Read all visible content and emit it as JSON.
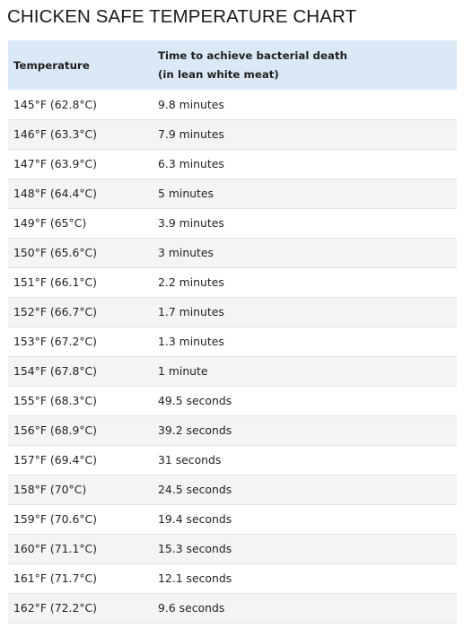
{
  "title": "CHICKEN SAFE TEMPERATURE CHART",
  "table": {
    "header": {
      "temperature": "Temperature",
      "time_line1": "Time to achieve bacterial death",
      "time_line2": "(in lean white meat)"
    },
    "rows": [
      {
        "temp": "145°F (62.8°C)",
        "time": "9.8 minutes"
      },
      {
        "temp": "146°F (63.3°C)",
        "time": "7.9 minutes"
      },
      {
        "temp": "147°F (63.9°C)",
        "time": "6.3 minutes"
      },
      {
        "temp": "148°F (64.4°C)",
        "time": "5 minutes"
      },
      {
        "temp": "149°F (65°C)",
        "time": "3.9 minutes"
      },
      {
        "temp": "150°F (65.6°C)",
        "time": "3 minutes"
      },
      {
        "temp": "151°F (66.1°C)",
        "time": "2.2 minutes"
      },
      {
        "temp": "152°F (66.7°C)",
        "time": "1.7 minutes"
      },
      {
        "temp": "153°F (67.2°C)",
        "time": "1.3 minutes"
      },
      {
        "temp": "154°F (67.8°C)",
        "time": "1 minute"
      },
      {
        "temp": "155°F (68.3°C)",
        "time": "49.5 seconds"
      },
      {
        "temp": "156°F (68.9°C)",
        "time": "39.2 seconds"
      },
      {
        "temp": "157°F (69.4°C)",
        "time": "31 seconds"
      },
      {
        "temp": "158°F (70°C)",
        "time": "24.5 seconds"
      },
      {
        "temp": "159°F (70.6°C)",
        "time": "19.4 seconds"
      },
      {
        "temp": "160°F (71.1°C)",
        "time": "15.3 seconds"
      },
      {
        "temp": "161°F (71.7°C)",
        "time": "12.1 seconds"
      },
      {
        "temp": "162°F (72.2°C)",
        "time": "9.6 seconds"
      }
    ]
  },
  "colors": {
    "header_background": "#dbe9f6",
    "stripe_background": "#f4f4f4",
    "row_divider": "#e3e3e3"
  }
}
